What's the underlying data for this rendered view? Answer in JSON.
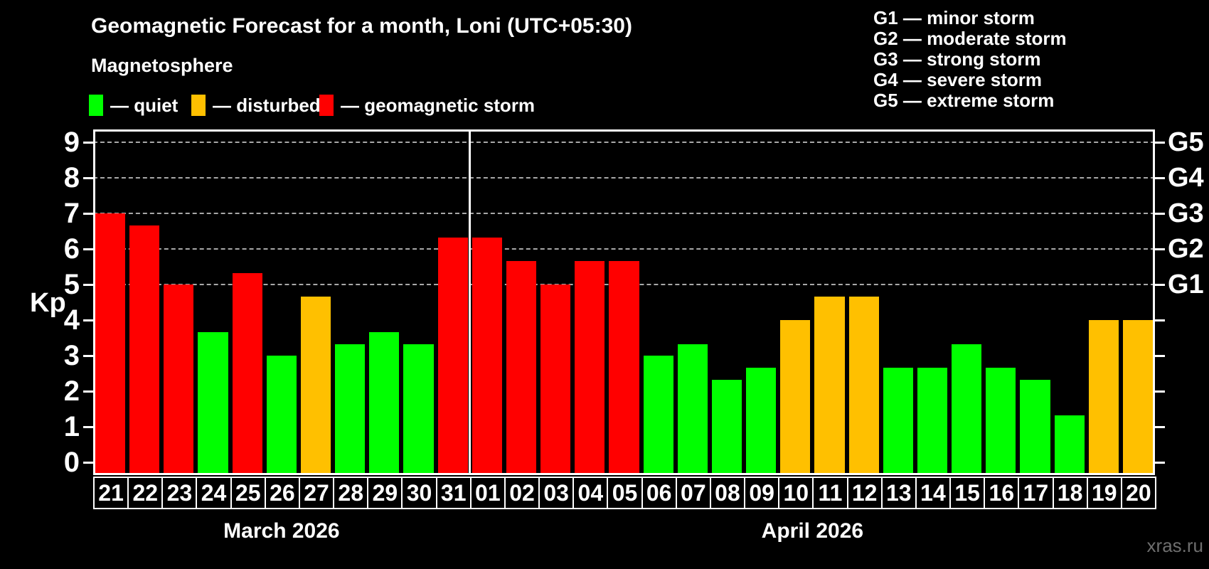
{
  "title": "Geomagnetic Forecast for a month, Loni (UTC+05:30)",
  "subtitle": "Magnetosphere",
  "legend": {
    "items": [
      {
        "key": "quiet",
        "label": "— quiet"
      },
      {
        "key": "disturbed",
        "label": "— disturbed"
      },
      {
        "key": "storm",
        "label": "— geomagnetic storm"
      }
    ]
  },
  "g_scale_legend": [
    "G1 — minor storm",
    "G2 — moderate storm",
    "G3 — strong storm",
    "G4 — severe storm",
    "G5 — extreme storm"
  ],
  "watermark": "xras.ru",
  "chart_data": {
    "type": "bar",
    "title": "Geomagnetic Forecast for a month, Loni (UTC+05:30)",
    "ylabel": "Kp",
    "ylim": [
      0,
      9
    ],
    "yticks": [
      0,
      1,
      2,
      3,
      4,
      5,
      6,
      7,
      8,
      9
    ],
    "gridlines_at": [
      5,
      6,
      7,
      8,
      9
    ],
    "grid": "dashed horizontal at storm levels only",
    "legend_position": "top",
    "right_axis": [
      {
        "kp": 5,
        "label": "G1"
      },
      {
        "kp": 6,
        "label": "G2"
      },
      {
        "kp": 7,
        "label": "G3"
      },
      {
        "kp": 8,
        "label": "G4"
      },
      {
        "kp": 9,
        "label": "G5"
      }
    ],
    "months": [
      {
        "label": "March 2026",
        "days": 11
      },
      {
        "label": "April 2026",
        "days": 20
      }
    ],
    "categories": [
      "21",
      "22",
      "23",
      "24",
      "25",
      "26",
      "27",
      "28",
      "29",
      "30",
      "31",
      "01",
      "02",
      "03",
      "04",
      "05",
      "06",
      "07",
      "08",
      "09",
      "10",
      "11",
      "12",
      "13",
      "14",
      "15",
      "16",
      "17",
      "18",
      "19",
      "20"
    ],
    "values": [
      7,
      6.67,
      5,
      3.67,
      5.33,
      3,
      4.67,
      3.33,
      3.67,
      3.33,
      6.33,
      6.33,
      5.67,
      5,
      5.67,
      5.67,
      3,
      3.33,
      2.33,
      2.67,
      4,
      4.67,
      4.67,
      2.67,
      2.67,
      3.33,
      2.67,
      2.33,
      1.33,
      4,
      4
    ],
    "statuses": [
      "storm",
      "storm",
      "storm",
      "quiet",
      "storm",
      "quiet",
      "disturbed",
      "quiet",
      "quiet",
      "quiet",
      "storm",
      "storm",
      "storm",
      "storm",
      "storm",
      "storm",
      "quiet",
      "quiet",
      "quiet",
      "quiet",
      "disturbed",
      "disturbed",
      "disturbed",
      "quiet",
      "quiet",
      "quiet",
      "quiet",
      "quiet",
      "quiet",
      "disturbed",
      "disturbed"
    ],
    "colors": {
      "quiet": "#00ff00",
      "disturbed": "#ffc000",
      "storm": "#ff0000"
    }
  }
}
